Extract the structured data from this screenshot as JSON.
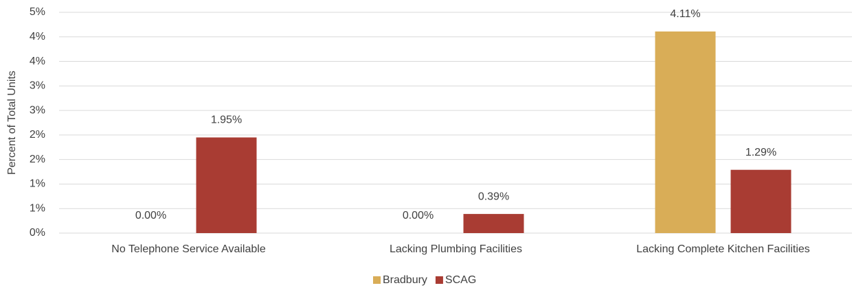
{
  "chart_data": {
    "type": "bar",
    "y_label": "Percent of Total Units",
    "categories": [
      "No Telephone Service Available",
      "Lacking Plumbing Facilities",
      "Lacking Complete Kitchen Facilities"
    ],
    "series": [
      {
        "name": "Bradbury",
        "color": "#d9ad57",
        "values": [
          0,
          0,
          4.11
        ],
        "value_labels": [
          "0.00%",
          "0.00%",
          "4.11%"
        ]
      },
      {
        "name": "SCAG",
        "color": "#a93c33",
        "values": [
          1.95,
          0.39,
          1.29
        ],
        "value_labels": [
          "1.95%",
          "0.39%",
          "1.29%"
        ]
      }
    ],
    "ylim": [
      0,
      4.5
    ],
    "yticks": [
      {
        "value": 0,
        "label": "0%"
      },
      {
        "value": 0.5,
        "label": "1%"
      },
      {
        "value": 1,
        "label": "1%"
      },
      {
        "value": 1.5,
        "label": "2%"
      },
      {
        "value": 2,
        "label": "2%"
      },
      {
        "value": 2.5,
        "label": "3%"
      },
      {
        "value": 3,
        "label": "3%"
      },
      {
        "value": 3.5,
        "label": "4%"
      },
      {
        "value": 4,
        "label": "4%"
      },
      {
        "value": 4.5,
        "label": "5%"
      }
    ],
    "grid": true,
    "legend": "bottom"
  }
}
